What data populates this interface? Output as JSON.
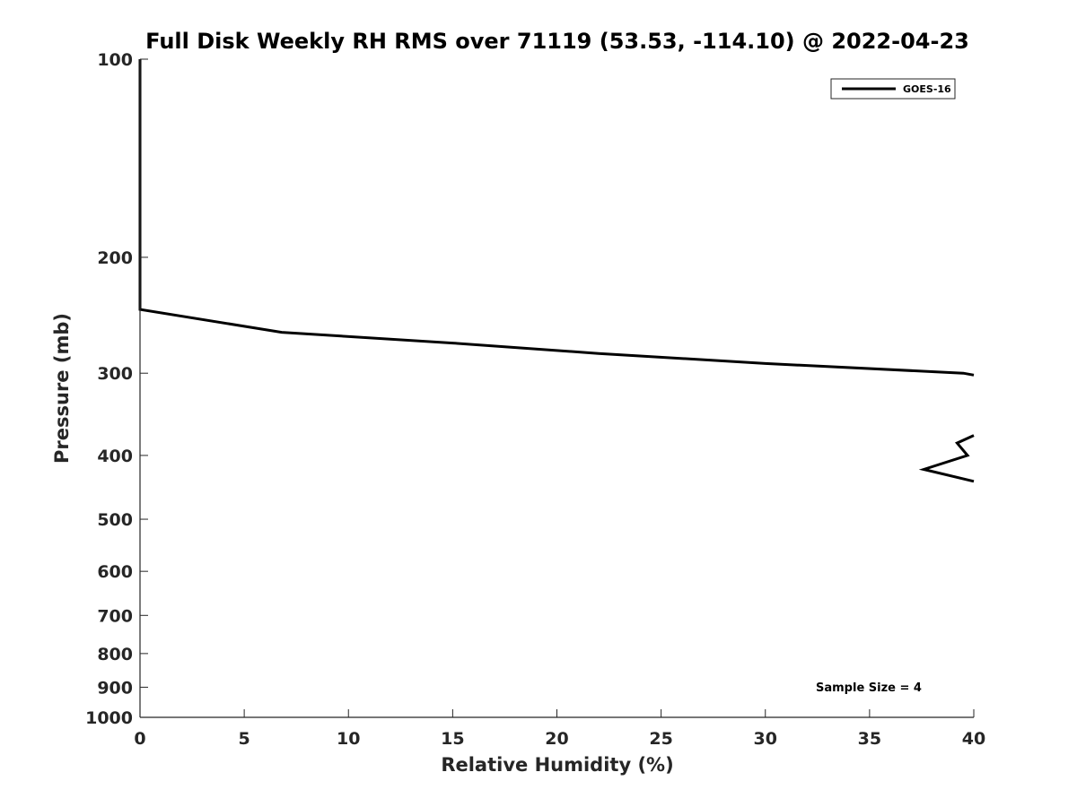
{
  "chart_data": {
    "type": "line",
    "title": "Full Disk Weekly RH RMS over 71119 (53.53, -114.10) @ 2022-04-23",
    "xlabel": "Relative Humidity (%)",
    "ylabel": "Pressure (mb)",
    "xlim": [
      0,
      40
    ],
    "ylim": [
      100,
      1000
    ],
    "yscale": "log",
    "y_reversed": true,
    "xticks": [
      0,
      5,
      10,
      15,
      20,
      25,
      30,
      35,
      40
    ],
    "yticks": [
      100,
      200,
      300,
      400,
      500,
      600,
      700,
      800,
      900,
      1000
    ],
    "grid": false,
    "legend": {
      "position": "top-right",
      "entries": [
        "GOES-16"
      ]
    },
    "annotation": "Sample Size = 4",
    "series": [
      {
        "name": "GOES-16",
        "color": "#000000",
        "segments": [
          [
            {
              "x": 0,
              "y": 100
            },
            {
              "x": 0,
              "y": 150
            },
            {
              "x": 0,
              "y": 200
            },
            {
              "x": 0,
              "y": 240
            },
            {
              "x": 6.8,
              "y": 260
            },
            {
              "x": 15,
              "y": 270
            },
            {
              "x": 22,
              "y": 280
            },
            {
              "x": 30,
              "y": 290
            },
            {
              "x": 39.5,
              "y": 300
            },
            {
              "x": 40,
              "y": 302
            }
          ],
          [
            {
              "x": 40,
              "y": 373
            },
            {
              "x": 39.2,
              "y": 383
            },
            {
              "x": 39.7,
              "y": 400
            },
            {
              "x": 37.6,
              "y": 420
            },
            {
              "x": 40,
              "y": 438
            }
          ]
        ]
      }
    ]
  }
}
